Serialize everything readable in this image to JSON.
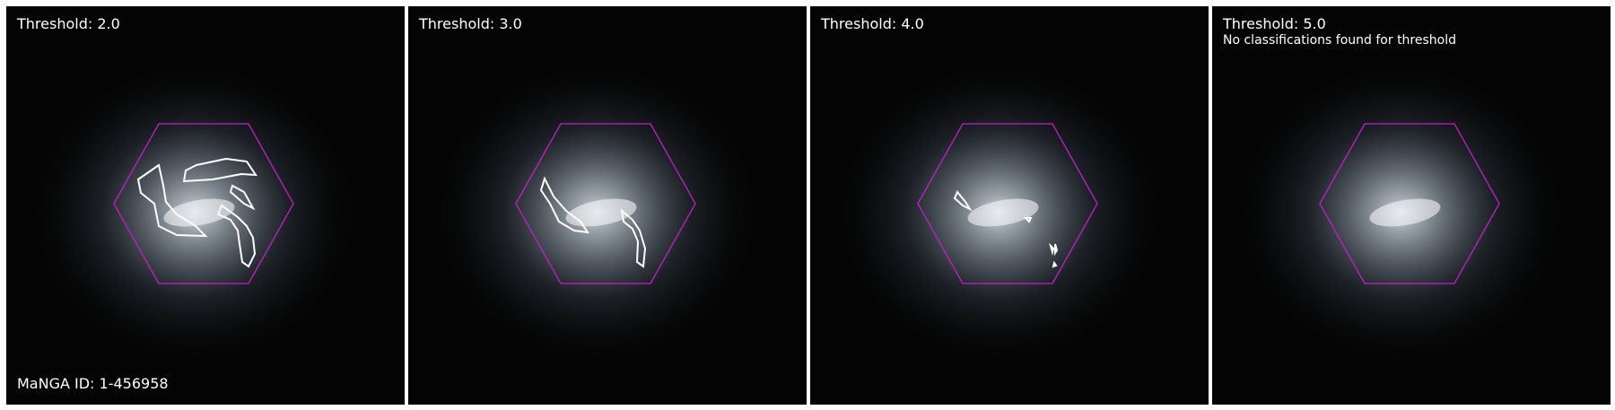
{
  "panels": [
    {
      "threshold_label": "Threshold: 2.0",
      "message": ""
    },
    {
      "threshold_label": "Threshold: 3.0",
      "message": ""
    },
    {
      "threshold_label": "Threshold: 4.0",
      "message": ""
    },
    {
      "threshold_label": "Threshold: 5.0",
      "message": "No classifications found for threshold"
    }
  ],
  "manga_id_label": "MaNGA ID: 1-456958",
  "colors": {
    "hexagon": "#c21ec9",
    "contour": "#ffffff",
    "background": "#040404"
  }
}
